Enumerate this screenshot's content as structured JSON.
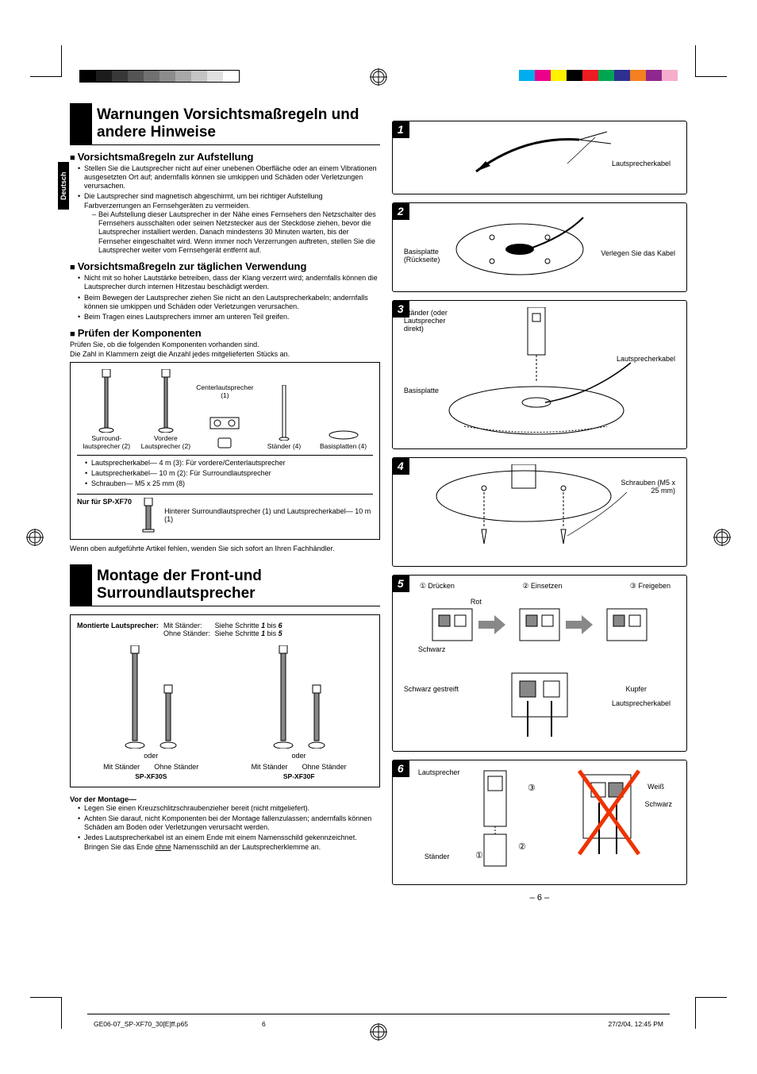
{
  "language_tab": "Deutsch",
  "color_bars": {
    "bw_left": [
      "#000000",
      "#1c1c1c",
      "#383838",
      "#545454",
      "#707070",
      "#8c8c8c",
      "#a8a8a8",
      "#c4c4c4",
      "#e0e0e0",
      "#ffffff"
    ],
    "color_right": [
      "#00adee",
      "#ec008b",
      "#fff100",
      "#000000",
      "#ed1b24",
      "#00a551",
      "#2e3092",
      "#f58021",
      "#90278e",
      "#f6adcd"
    ]
  },
  "headings": {
    "warnings": "Warnungen Vorsichtsmaßregeln und andere Hinweise",
    "setup": "Vorsichtsmaßregeln zur Aufstellung",
    "daily": "Vorsichtsmaßregeln zur täglichen Verwendung",
    "check": "Prüfen der Komponenten",
    "assembly": "Montage der Front-und Surroundlautsprecher"
  },
  "setup_bullets": {
    "b1": "Stellen Sie die Lautsprecher nicht auf einer unebenen Oberfläche oder an einem Vibrationen ausgesetzten Ort auf; andernfalls können sie umkippen und Schäden oder Verletzungen verursachen.",
    "b2": "Die Lautsprecher sind magnetisch abgeschirmt, um bei richtiger Aufstellung Farbverzerrungen an Fernsehgeräten zu vermeiden.",
    "b2_sub": "Bei Aufstellung dieser Lautsprecher in der Nähe eines Fernsehers den Netzschalter des Fernsehers ausschalten oder seinen Netzstecker aus der Steckdose ziehen, bevor die Lautsprecher installiert werden. Danach mindestens 30 Minuten warten, bis der Fernseher eingeschaltet wird. Wenn immer noch Verzerrungen auftreten, stellen Sie die Lautsprecher weiter vom Fernsehgerät entfernt auf."
  },
  "daily_bullets": {
    "b1": "Nicht mit so hoher Lautstärke betreiben, dass der Klang verzerrt wird; andernfalls können die Lautsprecher durch internen Hitzestau beschädigt werden.",
    "b2": "Beim Bewegen der Lautsprecher ziehen Sie nicht an den Lautsprecherkabeln; andernfalls können sie umkippen und Schäden oder Verletzungen verursachen.",
    "b3": "Beim Tragen eines Lautsprechers immer am unteren Teil greifen."
  },
  "check_intro": {
    "l1": "Prüfen Sie, ob die folgenden Komponenten vorhanden sind.",
    "l2": "Die Zahl in Klammern zeigt die Anzahl jedes mitgelieferten Stücks an."
  },
  "components": {
    "surround": "Surround-lautsprecher (2)",
    "front": "Vordere Lautsprecher (2)",
    "center": "Centerlautsprecher (1)",
    "stands": "Ständer (4)",
    "plates": "Basisplatten (4)",
    "cable1": "Lautsprecherkabel— 4 m (3):  Für vordere/Centerlautsprecher",
    "cable2": "Lautsprecherkabel— 10 m (2):  Für Surroundlautsprecher",
    "screws": "Schrauben— M5 x 25 mm (8)",
    "xf70_label": "Nur für SP-XF70",
    "xf70_text": "Hinterer Surroundlautsprecher (1) und Lautsprecherkabel— 10 m (1)"
  },
  "missing_note": "Wenn oben aufgeführte Artikel fehlen, wenden Sie sich sofort an Ihren Fachhändler.",
  "assembly_table": {
    "head_label": "Montierte Lautsprecher:",
    "row1_k": "Mit Ständer:",
    "row1_v_pre": "Siehe Schritte ",
    "row1_v_mid": " bis ",
    "row1_a": "1",
    "row1_b": "6",
    "row2_k": "Ohne Ständer:",
    "row2_v_pre": "Siehe Schritte ",
    "row2_v_mid": " bis ",
    "row2_a": "1",
    "row2_b": "5",
    "oder": "oder",
    "mit": "Mit Ständer",
    "ohne": "Ohne Ständer",
    "model_l": "SP-XF30S",
    "model_r": "SP-XF30F"
  },
  "before_mount": {
    "title": "Vor der Montage—",
    "b1": "Legen Sie einen Kreuzschlitzschraubenzieher bereit (nicht mitgeliefert).",
    "b2": "Achten Sie darauf, nicht Komponenten bei der Montage fallenzulassen; andernfalls können Schäden am Boden oder Verletzungen verursacht werden.",
    "b3_pre": "Jedes Lautsprecherkabel ist an einem Ende mit einem Namensschild gekennzeichnet. Bringen Sie das Ende ",
    "b3_u": "ohne",
    "b3_post": " Namensschild an der Lautsprecherklemme an."
  },
  "steps": {
    "s1": {
      "num": "1",
      "label_cable": "Lautsprecherkabel"
    },
    "s2": {
      "num": "2",
      "label_plate": "Basisplatte (Rückseite)",
      "label_route": "Verlegen Sie das Kabel"
    },
    "s3": {
      "num": "3",
      "label_stand": "Ständer (oder Lautsprecher direkt)",
      "label_plate": "Basisplatte",
      "label_cable": "Lautsprecherkabel"
    },
    "s4": {
      "num": "4",
      "label_screws": "Schrauben (M5 x 25 mm)"
    },
    "s5": {
      "num": "5",
      "a1": "Drücken",
      "a2": "Einsetzen",
      "a3": "Freigeben",
      "red": "Rot",
      "black": "Schwarz",
      "stripe": "Schwarz gestreift",
      "copper": "Kupfer",
      "cable": "Lautsprecherkabel"
    },
    "s6": {
      "num": "6",
      "speaker": "Lautsprecher",
      "stand": "Ständer",
      "white": "Weiß",
      "black": "Schwarz"
    }
  },
  "page_number": "– 6 –",
  "footer": {
    "file": "GE06-07_SP-XF70_30[E]ff.p65",
    "page": "6",
    "date": "27/2/04, 12:45 PM"
  }
}
